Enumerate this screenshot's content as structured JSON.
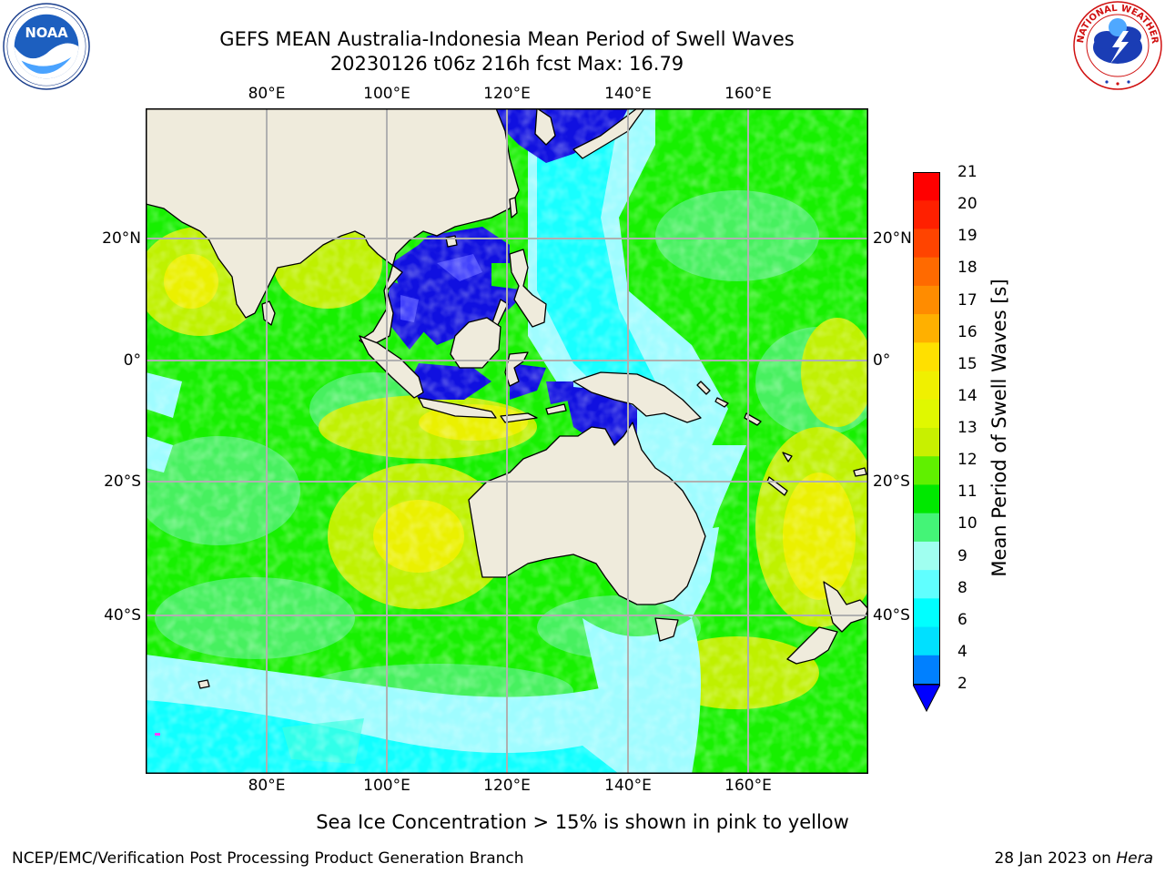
{
  "header": {
    "title_line1": "GEFS MEAN Australia-Indonesia Mean Period of Swell Waves",
    "title_line2": "20230126 t06z 216h fcst   Max: 16.79"
  },
  "map": {
    "lon_labels": [
      "80°E",
      "100°E",
      "120°E",
      "140°E",
      "160°E"
    ],
    "lat_labels": [
      "20°N",
      "0°",
      "20°S",
      "40°S"
    ],
    "colors": {
      "land": "#efebdc",
      "grid": "#b0b0b0",
      "deep_blue": "#1010e0",
      "cyan": "#00ffff",
      "light_cyan": "#9ffcff",
      "green": "#17f000",
      "light_green": "#50f070",
      "yellow_green": "#c8f000",
      "yellow": "#f0f000"
    }
  },
  "colorbar": {
    "title": "Mean Period of Swell Waves [s]",
    "ticks": [
      "21",
      "20",
      "19",
      "18",
      "17",
      "16",
      "15",
      "14",
      "13",
      "12",
      "11",
      "10",
      "9",
      "8",
      "6",
      "4",
      "2"
    ],
    "colors": [
      "#ff0000",
      "#ff2000",
      "#ff4400",
      "#ff6a00",
      "#ff8c00",
      "#ffb000",
      "#ffe000",
      "#f0f000",
      "#e0f800",
      "#c8f000",
      "#60f000",
      "#00e800",
      "#44f477",
      "#a0fff0",
      "#60ffff",
      "#00ffff",
      "#00e0ff",
      "#0080ff"
    ],
    "extend_color": "#0000ff"
  },
  "note": "Sea Ice Concentration > 15% is shown in pink to yellow",
  "footer": {
    "left": "NCEP/EMC/Verification Post Processing Product Generation Branch",
    "date": "28 Jan 2023 on ",
    "host": "Hera"
  }
}
